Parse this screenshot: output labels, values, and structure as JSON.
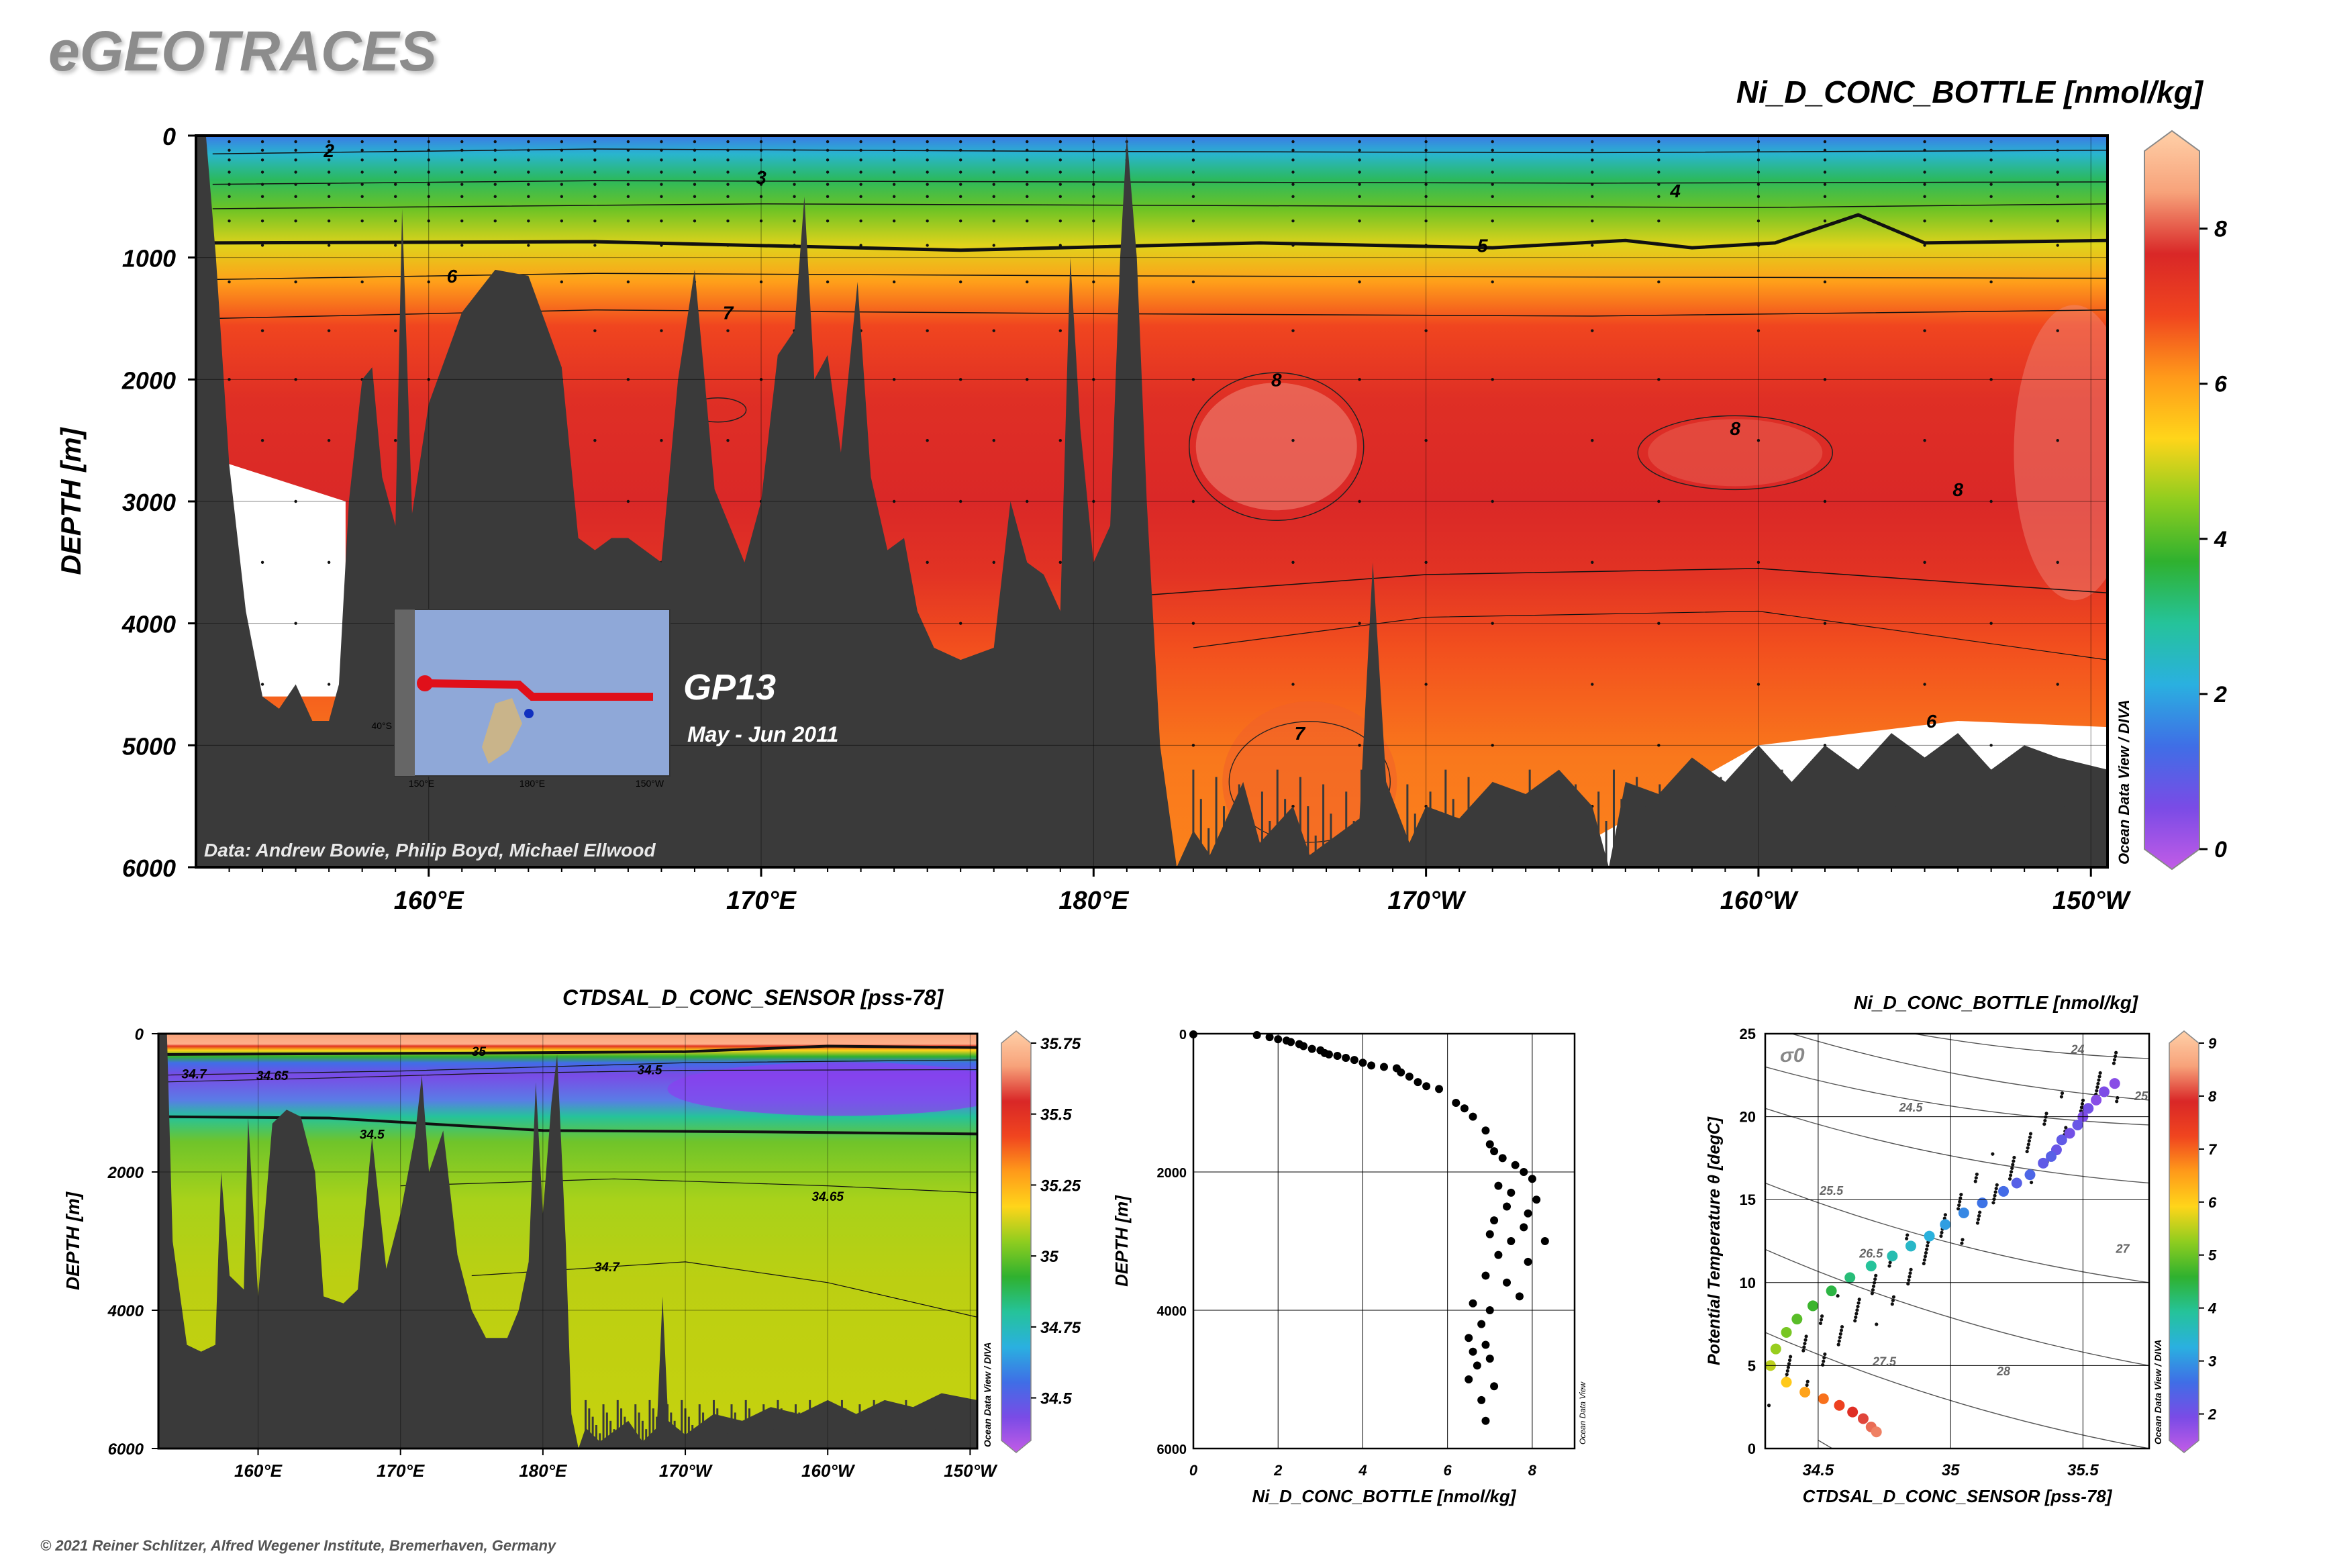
{
  "brand": "eGEOTRACES",
  "copyright": "© 2021 Reiner Schlitzer, Alfred Wegener Institute, Bremerhaven, Germany",
  "odv_credit": "Ocean Data View / DIVA",
  "odv_credit_short": "Ocean Data View",
  "colors": {
    "bathymetry": "#3a3a3a",
    "colormap": [
      "#c25ce6",
      "#7a4be6",
      "#3f6ee6",
      "#2ab0e0",
      "#25c39a",
      "#2fb12f",
      "#8fcd1f",
      "#ffd51a",
      "#ff9a1a",
      "#f0451f",
      "#d92727",
      "#f7a27a",
      "#ffd0a8"
    ]
  },
  "main": {
    "title": "Ni_D_CONC_BOTTLE [nmol/kg]",
    "ylabel": "DEPTH [m]",
    "data_credit": "Data: Andrew Bowie, Philip Boyd, Michael Ellwood",
    "section": "GP13",
    "period": "May - Jun 2011",
    "inset_labels": [
      "40°S",
      "150°E",
      "180°E",
      "150°W"
    ]
  },
  "sal": {
    "title": "CTDSAL_D_CONC_SENSOR [pss-78]",
    "ylabel": "DEPTH [m]"
  },
  "profile": {
    "xlabel": "Ni_D_CONC_BOTTLE [nmol/kg]",
    "ylabel": "DEPTH [m]"
  },
  "ts": {
    "title": "Ni_D_CONC_BOTTLE [nmol/kg]",
    "xlabel": "CTDSAL_D_CONC_SENSOR [pss-78]",
    "ylabel": "Potential Temperature θ [degC]",
    "sigma_label": "σ0"
  },
  "chart_data": [
    {
      "type": "heatmap",
      "title": "Ni_D_CONC_BOTTLE [nmol/kg]",
      "ylabel": "DEPTH [m]",
      "xlabel": "",
      "x_ticks": [
        "160°E",
        "170°E",
        "180°E",
        "170°W",
        "160°W",
        "150°W"
      ],
      "x_tick_values": [
        160,
        170,
        180,
        190,
        200,
        210
      ],
      "xlim": [
        153,
        210.5
      ],
      "y_ticks": [
        0,
        1000,
        2000,
        3000,
        4000,
        5000,
        6000
      ],
      "ylim": [
        6000,
        0
      ],
      "colorbar": {
        "ticks": [
          0,
          2,
          4,
          6,
          8
        ],
        "range": [
          0,
          9
        ]
      },
      "contour_labels": [
        {
          "value": "2",
          "x": 157,
          "y": 120
        },
        {
          "value": "3",
          "x": 170,
          "y": 340
        },
        {
          "value": "4",
          "x": 197.5,
          "y": 450
        },
        {
          "value": "5",
          "x": 191.7,
          "y": 900
        },
        {
          "value": "6",
          "x": 160.7,
          "y": 1150
        },
        {
          "value": "7",
          "x": 169,
          "y": 1450
        },
        {
          "value": "8",
          "x": 185.5,
          "y": 2000
        },
        {
          "value": "8",
          "x": 199.3,
          "y": 2400
        },
        {
          "value": "8",
          "x": 206,
          "y": 2900
        },
        {
          "value": "7",
          "x": 186.2,
          "y": 4900
        },
        {
          "value": "6",
          "x": 205.2,
          "y": 4800
        }
      ]
    },
    {
      "type": "heatmap",
      "title": "CTDSAL_D_CONC_SENSOR [pss-78]",
      "ylabel": "DEPTH [m]",
      "xlabel": "",
      "x_ticks": [
        "160°E",
        "170°E",
        "180°E",
        "170°W",
        "160°W",
        "150°W"
      ],
      "x_tick_values": [
        160,
        170,
        180,
        190,
        200,
        210
      ],
      "y_ticks": [
        0,
        2000,
        4000,
        6000
      ],
      "ylim": [
        6000,
        0
      ],
      "colorbar": {
        "ticks": [
          34.5,
          34.75,
          35,
          35.25,
          35.5,
          35.75
        ],
        "range": [
          34.35,
          35.75
        ]
      },
      "contour_labels": [
        "35",
        "34.7",
        "34.65",
        "34.5",
        "34.5",
        "34.65",
        "34.7"
      ]
    },
    {
      "type": "scatter",
      "xlabel": "Ni_D_CONC_BOTTLE [nmol/kg]",
      "ylabel": "DEPTH [m]",
      "xlim": [
        0,
        9
      ],
      "ylim": [
        6000,
        0
      ],
      "x_ticks": [
        0,
        2,
        4,
        6,
        8
      ],
      "y_ticks": [
        0,
        2000,
        4000,
        6000
      ],
      "points": [
        [
          0,
          10
        ],
        [
          1.5,
          20
        ],
        [
          1.8,
          50
        ],
        [
          2.0,
          80
        ],
        [
          2.2,
          100
        ],
        [
          2.3,
          120
        ],
        [
          2.5,
          150
        ],
        [
          2.6,
          180
        ],
        [
          2.8,
          220
        ],
        [
          3.0,
          240
        ],
        [
          3.1,
          280
        ],
        [
          3.2,
          300
        ],
        [
          3.4,
          320
        ],
        [
          3.6,
          350
        ],
        [
          3.8,
          380
        ],
        [
          4.0,
          420
        ],
        [
          4.2,
          460
        ],
        [
          4.5,
          480
        ],
        [
          4.8,
          500
        ],
        [
          4.9,
          560
        ],
        [
          5.1,
          620
        ],
        [
          5.3,
          700
        ],
        [
          5.5,
          760
        ],
        [
          5.8,
          800
        ],
        [
          6.2,
          1000
        ],
        [
          6.4,
          1080
        ],
        [
          6.6,
          1200
        ],
        [
          6.9,
          1400
        ],
        [
          7.0,
          1600
        ],
        [
          7.1,
          1700
        ],
        [
          7.3,
          1800
        ],
        [
          7.6,
          1900
        ],
        [
          7.8,
          2000
        ],
        [
          8.0,
          2100
        ],
        [
          7.2,
          2200
        ],
        [
          7.5,
          2300
        ],
        [
          8.1,
          2400
        ],
        [
          7.4,
          2500
        ],
        [
          7.9,
          2600
        ],
        [
          7.1,
          2700
        ],
        [
          7.8,
          2800
        ],
        [
          7.0,
          2900
        ],
        [
          7.5,
          3000
        ],
        [
          8.3,
          3000
        ],
        [
          7.2,
          3200
        ],
        [
          7.9,
          3300
        ],
        [
          6.9,
          3500
        ],
        [
          7.4,
          3600
        ],
        [
          7.7,
          3800
        ],
        [
          6.6,
          3900
        ],
        [
          7.0,
          4000
        ],
        [
          6.8,
          4200
        ],
        [
          6.5,
          4400
        ],
        [
          6.9,
          4500
        ],
        [
          6.6,
          4600
        ],
        [
          7.0,
          4700
        ],
        [
          6.7,
          4800
        ],
        [
          6.5,
          5000
        ],
        [
          7.1,
          5100
        ],
        [
          6.8,
          5300
        ],
        [
          6.9,
          5600
        ]
      ]
    },
    {
      "type": "scatter",
      "title": "Ni_D_CONC_BOTTLE [nmol/kg]",
      "xlabel": "CTDSAL_D_CONC_SENSOR [pss-78]",
      "ylabel": "Potential Temperature θ [degC]",
      "xlim": [
        34.3,
        35.75
      ],
      "ylim": [
        0,
        25
      ],
      "x_ticks": [
        34.5,
        35,
        35.5
      ],
      "y_ticks": [
        0,
        5,
        10,
        15,
        20,
        25
      ],
      "colorbar": {
        "ticks": [
          2,
          3,
          4,
          5,
          6,
          7,
          8,
          9
        ],
        "range": [
          1.5,
          9
        ]
      },
      "isopycnal_labels": [
        "24",
        "24.5",
        "25",
        "25.5",
        "26.5",
        "27",
        "27.5",
        "28"
      ],
      "points": [
        [
          35.62,
          22.0,
          2.0
        ],
        [
          35.58,
          21.5,
          2.1
        ],
        [
          35.55,
          21.0,
          2.0
        ],
        [
          35.52,
          20.5,
          2.2
        ],
        [
          35.5,
          20.0,
          2.1
        ],
        [
          35.48,
          19.5,
          2.3
        ],
        [
          35.45,
          19.0,
          2.2
        ],
        [
          35.42,
          18.6,
          2.4
        ],
        [
          35.4,
          18.0,
          2.3
        ],
        [
          35.38,
          17.6,
          2.5
        ],
        [
          35.35,
          17.2,
          2.4
        ],
        [
          35.3,
          16.5,
          2.6
        ],
        [
          35.25,
          16.0,
          2.5
        ],
        [
          35.2,
          15.5,
          2.7
        ],
        [
          35.12,
          14.8,
          2.8
        ],
        [
          35.05,
          14.2,
          3.0
        ],
        [
          34.98,
          13.5,
          3.2
        ],
        [
          34.92,
          12.8,
          3.4
        ],
        [
          34.85,
          12.2,
          3.6
        ],
        [
          34.78,
          11.6,
          3.8
        ],
        [
          34.7,
          11.0,
          4.0
        ],
        [
          34.62,
          10.3,
          4.2
        ],
        [
          34.55,
          9.5,
          4.5
        ],
        [
          34.48,
          8.6,
          4.7
        ],
        [
          34.42,
          7.8,
          4.9
        ],
        [
          34.38,
          7.0,
          5.1
        ],
        [
          34.34,
          6.0,
          5.3
        ],
        [
          34.32,
          5.0,
          5.5
        ],
        [
          34.38,
          4.0,
          6.0
        ],
        [
          34.45,
          3.4,
          6.4
        ],
        [
          34.52,
          3.0,
          6.8
        ],
        [
          34.58,
          2.6,
          7.2
        ],
        [
          34.63,
          2.2,
          7.6
        ],
        [
          34.67,
          1.8,
          7.9
        ],
        [
          34.7,
          1.3,
          8.1
        ],
        [
          34.72,
          1.0,
          8.2
        ]
      ]
    }
  ]
}
